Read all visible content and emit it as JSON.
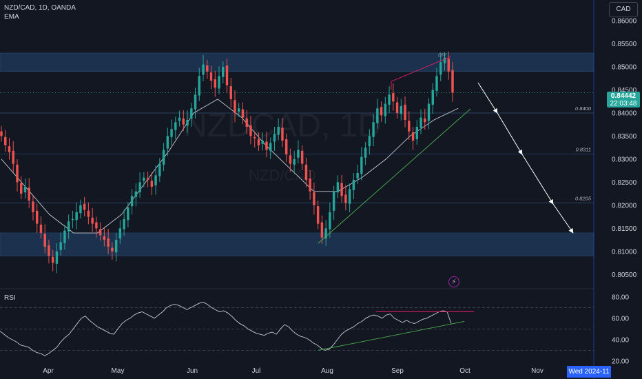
{
  "header": {
    "symbol_line": "NZD/CAD, 1D, OANDA",
    "indicator": "EMA"
  },
  "currency_button": "CAD",
  "last_price": {
    "price": "0.84442",
    "countdown": "22:03:48"
  },
  "crosshair_date": "Wed 2024-11",
  "rsi_label": "RSI",
  "alert_icon": "lightning-icon",
  "watermark": {
    "main": "NZDCAD, 1D",
    "sub": "NZD/CAD"
  },
  "colors": {
    "background": "#131722",
    "up": "#26a69a",
    "down": "#ef5350",
    "zone": "#1e3a5c",
    "text": "#d1d4dc",
    "grid": "#2a2e39",
    "divergence": "#e91e63",
    "trend": "#4caf50",
    "accent": "#2962ff"
  },
  "chart_data": [
    {
      "type": "candlestick",
      "y_axis_ticks": [
        "0.86000",
        "0.85500",
        "0.85000",
        "0.84500",
        "0.84000",
        "0.83500",
        "0.83000",
        "0.82500",
        "0.82000",
        "0.81500",
        "0.81000",
        "0.80500"
      ],
      "ylim": [
        0.8025,
        0.863
      ],
      "x_axis_ticks": [
        "Apr",
        "May",
        "Jun",
        "Jul",
        "Aug",
        "Sep",
        "Oct",
        "Nov"
      ],
      "series_close": [
        0.835,
        0.833,
        0.8315,
        0.829,
        0.825,
        0.8225,
        0.824,
        0.821,
        0.8185,
        0.816,
        0.814,
        0.811,
        0.809,
        0.8075,
        0.81,
        0.812,
        0.8145,
        0.8165,
        0.817,
        0.8185,
        0.82,
        0.819,
        0.8175,
        0.816,
        0.815,
        0.8135,
        0.8125,
        0.811,
        0.81,
        0.8125,
        0.815,
        0.817,
        0.8195,
        0.822,
        0.823,
        0.825,
        0.826,
        0.8255,
        0.824,
        0.8265,
        0.829,
        0.832,
        0.835,
        0.8365,
        0.838,
        0.839,
        0.8375,
        0.8385,
        0.841,
        0.844,
        0.848,
        0.8505,
        0.849,
        0.847,
        0.8455,
        0.848,
        0.85,
        0.846,
        0.843,
        0.84,
        0.841,
        0.839,
        0.837,
        0.835,
        0.8345,
        0.833,
        0.834,
        0.832,
        0.8335,
        0.8355,
        0.837,
        0.834,
        0.831,
        0.829,
        0.83,
        0.832,
        0.829,
        0.8255,
        0.823,
        0.82,
        0.816,
        0.813,
        0.815,
        0.8185,
        0.823,
        0.825,
        0.822,
        0.8205,
        0.8235,
        0.8255,
        0.827,
        0.8305,
        0.8325,
        0.835,
        0.838,
        0.841,
        0.8395,
        0.842,
        0.844,
        0.8425,
        0.84,
        0.8415,
        0.8385,
        0.836,
        0.834,
        0.837,
        0.839,
        0.838,
        0.842,
        0.845,
        0.848,
        0.851,
        0.852,
        0.849,
        0.8444
      ],
      "ema_values": [
        0.83,
        0.824,
        0.818,
        0.814,
        0.814,
        0.818,
        0.825,
        0.832,
        0.84,
        0.843,
        0.839,
        0.833,
        0.828,
        0.823,
        0.823,
        0.826,
        0.83,
        0.835,
        0.8385,
        0.841
      ],
      "hlines": [
        {
          "label": "0.8400",
          "value": 0.84
        },
        {
          "label": "0.8311",
          "value": 0.8311
        },
        {
          "label": "0.8205",
          "value": 0.8205
        }
      ],
      "zones": [
        {
          "from": 0.849,
          "to": 0.853
        },
        {
          "from": 0.809,
          "to": 0.814
        }
      ],
      "annotations": [
        {
          "text": "DIV"
        }
      ]
    },
    {
      "type": "line",
      "name": "RSI",
      "y_axis_ticks": [
        "80.00",
        "60.00",
        "40.00",
        "20.00"
      ],
      "ylim": [
        18,
        85
      ],
      "levels": [
        70,
        50,
        30
      ],
      "values": [
        48,
        45,
        42,
        40,
        38,
        35,
        34,
        33,
        30,
        28,
        27,
        25,
        27,
        30,
        33,
        38,
        42,
        45,
        50,
        55,
        60,
        62,
        58,
        55,
        52,
        50,
        48,
        46,
        45,
        50,
        55,
        58,
        60,
        63,
        65,
        66,
        64,
        62,
        60,
        63,
        66,
        70,
        72,
        73,
        72,
        70,
        68,
        70,
        72,
        74,
        75,
        73,
        70,
        68,
        66,
        67,
        65,
        62,
        58,
        55,
        53,
        50,
        48,
        46,
        45,
        44,
        46,
        47,
        45,
        50,
        54,
        52,
        48,
        45,
        43,
        42,
        40,
        37,
        35,
        32,
        30,
        31,
        35,
        40,
        45,
        48,
        50,
        52,
        55,
        57,
        60,
        62,
        63,
        62,
        60,
        63,
        64,
        60,
        58,
        56,
        58,
        56,
        55,
        57,
        59,
        60,
        62,
        64,
        66,
        67,
        66,
        55
      ]
    }
  ]
}
